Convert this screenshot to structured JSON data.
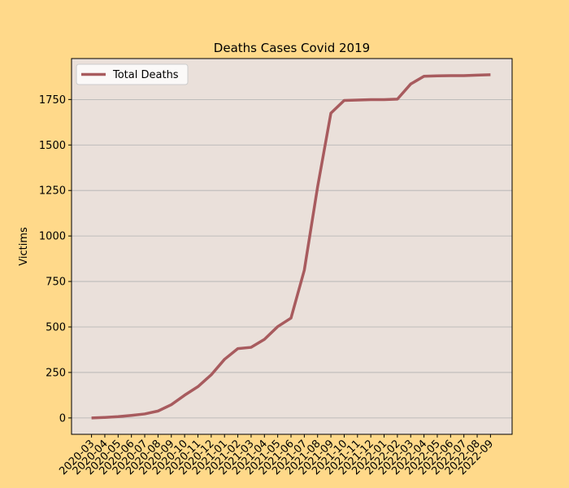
{
  "chart_data": {
    "type": "line",
    "title": "Deaths Cases Covid 2019",
    "xlabel": "",
    "ylabel": "Victims",
    "ylim": [
      -90,
      1975
    ],
    "yticks": [
      0,
      250,
      500,
      750,
      1000,
      1250,
      1500,
      1750
    ],
    "grid": "y",
    "legend_position": "top-left",
    "categories": [
      "2020-03",
      "2020-04",
      "2020-05",
      "2020-06",
      "2020-07",
      "2020-08",
      "2020-09",
      "2020-10",
      "2020-11",
      "2020-12",
      "2021-01",
      "2021-02",
      "2021-03",
      "2021-04",
      "2021-05",
      "2021-06",
      "2021-07",
      "2021-08",
      "2021-09",
      "2021-10",
      "2021-11",
      "2021-12",
      "2022-01",
      "2022-02",
      "2022-03",
      "2022-04",
      "2022-05",
      "2022-06",
      "2022-07",
      "2022-08",
      "2022-09"
    ],
    "series": [
      {
        "name": "Total Deaths",
        "color": "#a85b5e",
        "values": [
          0,
          3,
          7,
          14,
          22,
          38,
          73,
          125,
          172,
          237,
          322,
          381,
          388,
          432,
          502,
          549,
          812,
          1270,
          1675,
          1745,
          1747,
          1749,
          1749,
          1752,
          1835,
          1878,
          1880,
          1881,
          1881,
          1884,
          1886
        ]
      }
    ]
  },
  "colors": {
    "figure_background": "#ffd98a",
    "plot_background": "#eae0da",
    "grid": "#b0b0b0"
  }
}
